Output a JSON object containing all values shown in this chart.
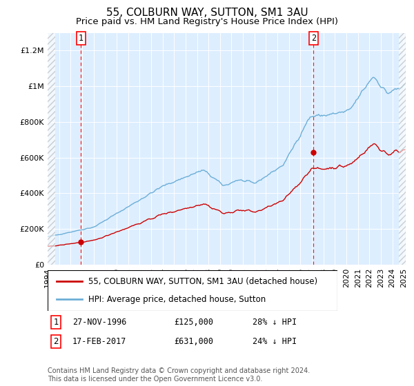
{
  "title": "55, COLBURN WAY, SUTTON, SM1 3AU",
  "subtitle": "Price paid vs. HM Land Registry's House Price Index (HPI)",
  "ylim": [
    0,
    1300000
  ],
  "yticks": [
    0,
    200000,
    400000,
    600000,
    800000,
    1000000,
    1200000
  ],
  "ytick_labels": [
    "£0",
    "£200K",
    "£400K",
    "£600K",
    "£800K",
    "£1M",
    "£1.2M"
  ],
  "sale1_year": 1996,
  "sale1_month": 11,
  "sale1_day": 27,
  "sale1_price": 125000,
  "sale2_year": 2017,
  "sale2_month": 2,
  "sale2_day": 17,
  "sale2_price": 631000,
  "hpi_color": "#6baed6",
  "price_color": "#cc0000",
  "plot_bg_color": "#ddeeff",
  "legend_label_price": "55, COLBURN WAY, SUTTON, SM1 3AU (detached house)",
  "legend_label_hpi": "HPI: Average price, detached house, Sutton",
  "fn1_date": "27-NOV-1996",
  "fn1_price": "£125,000",
  "fn1_hpi": "28% ↓ HPI",
  "fn2_date": "17-FEB-2017",
  "fn2_price": "£631,000",
  "fn2_hpi": "24% ↓ HPI",
  "copyright_text": "Contains HM Land Registry data © Crown copyright and database right 2024.\nThis data is licensed under the Open Government Licence v3.0.",
  "title_fontsize": 11,
  "subtitle_fontsize": 9.5,
  "tick_fontsize": 8,
  "annot_fontsize": 8.5
}
